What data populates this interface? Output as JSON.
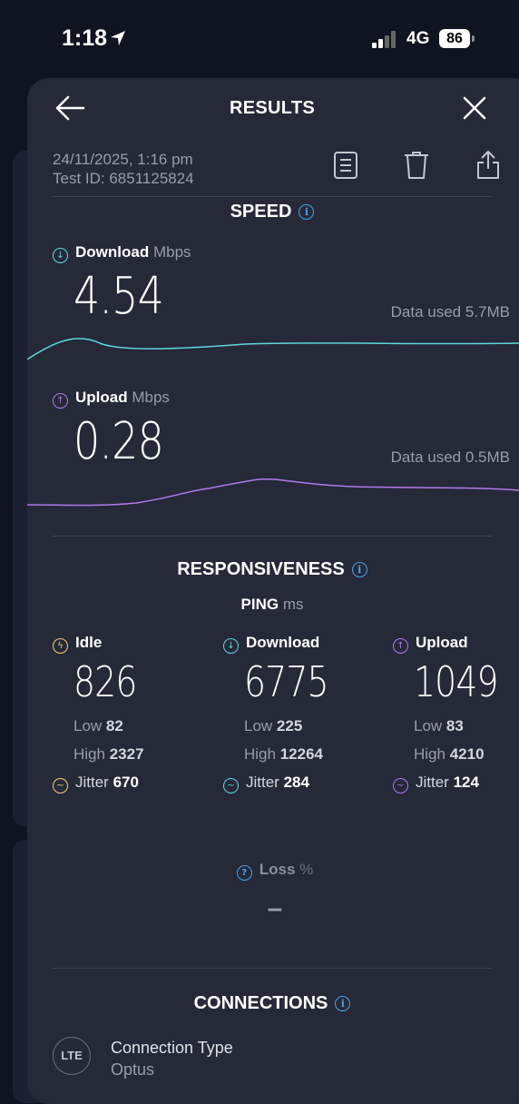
{
  "status_bar": {
    "time": "1:18",
    "network": "4G",
    "battery": "86"
  },
  "header": {
    "title": "RESULTS"
  },
  "test": {
    "datetime": "24/11/2025, 1:16 pm",
    "test_id": "Test ID: 6851125824"
  },
  "speed": {
    "title": "SPEED",
    "download": {
      "label": "Download",
      "unit": "Mbps",
      "value": "4.54",
      "data_used": "Data used 5.7MB"
    },
    "upload": {
      "label": "Upload",
      "unit": "Mbps",
      "value": "0.28",
      "data_used": "Data used 0.5MB"
    }
  },
  "responsiveness": {
    "title": "RESPONSIVENESS",
    "ping_label": "PING",
    "ping_unit": "ms",
    "idle": {
      "label": "Idle",
      "value": "826",
      "low_label": "Low",
      "low": "82",
      "high_label": "High",
      "high": "2327",
      "jitter_label": "Jitter",
      "jitter": "670"
    },
    "download": {
      "label": "Download",
      "value": "6775",
      "low_label": "Low",
      "low": "225",
      "high_label": "High",
      "high": "12264",
      "jitter_label": "Jitter",
      "jitter": "284"
    },
    "upload": {
      "label": "Upload",
      "value": "1049",
      "low_label": "Low",
      "low": "83",
      "high_label": "High",
      "high": "4210",
      "jitter_label": "Jitter",
      "jitter": "124"
    },
    "loss_label": "Loss",
    "loss_unit": "%",
    "loss_value": "–"
  },
  "connections": {
    "title": "CONNECTIONS",
    "badge": "LTE",
    "type_label": "Connection Type",
    "provider": "Optus"
  },
  "colors": {
    "download": "#5fd6dc",
    "upload": "#b07ae8",
    "idle": "#f0d27a",
    "info": "#4aa3e8"
  }
}
